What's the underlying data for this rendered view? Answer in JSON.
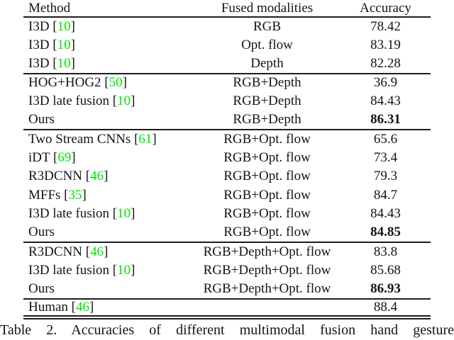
{
  "table": {
    "headers": {
      "method": "Method",
      "modalities": "Fused modalities",
      "accuracy": "Accuracy"
    },
    "rows": [
      {
        "method": "I3D [",
        "cite": "10",
        "close": "]",
        "modality": "RGB",
        "accuracy": "78.42",
        "bold": false
      },
      {
        "method": "I3D [",
        "cite": "10",
        "close": "]",
        "modality": "Opt. flow",
        "accuracy": "83.19",
        "bold": false
      },
      {
        "method": "I3D [",
        "cite": "10",
        "close": "]",
        "modality": "Depth",
        "accuracy": "82.28",
        "bold": false
      },
      {
        "method": "HOG+HOG2 [",
        "cite": "50",
        "close": "]",
        "modality": "RGB+Depth",
        "accuracy": "36.9",
        "bold": false
      },
      {
        "method": "I3D late fusion [",
        "cite": "10",
        "close": "]",
        "modality": "RGB+Depth",
        "accuracy": "84.43",
        "bold": false
      },
      {
        "method": "Ours",
        "cite": "",
        "close": "",
        "modality": "RGB+Depth",
        "accuracy": "86.31",
        "bold": true
      },
      {
        "method": "Two Stream CNNs [",
        "cite": "61",
        "close": "]",
        "modality": "RGB+Opt. flow",
        "accuracy": "65.6",
        "bold": false
      },
      {
        "method": "iDT [",
        "cite": "69",
        "close": "]",
        "modality": "RGB+Opt. flow",
        "accuracy": "73.4",
        "bold": false
      },
      {
        "method": "R3DCNN [",
        "cite": "46",
        "close": "]",
        "modality": "RGB+Opt. flow",
        "accuracy": "79.3",
        "bold": false
      },
      {
        "method": "MFFs [",
        "cite": "35",
        "close": "]",
        "modality": "RGB+Opt. flow",
        "accuracy": "84.7",
        "bold": false
      },
      {
        "method": "I3D late fusion [",
        "cite": "10",
        "close": "]",
        "modality": "RGB+Opt. flow",
        "accuracy": "84.43",
        "bold": false
      },
      {
        "method": "Ours",
        "cite": "",
        "close": "",
        "modality": "RGB+Opt. flow",
        "accuracy": "84.85",
        "bold": true
      },
      {
        "method": "R3DCNN [",
        "cite": "46",
        "close": "]",
        "modality": "RGB+Depth+Opt. flow",
        "accuracy": "83.8",
        "bold": false
      },
      {
        "method": "I3D late fusion [",
        "cite": "10",
        "close": "]",
        "modality": "RGB+Depth+Opt. flow",
        "accuracy": "85.68",
        "bold": false
      },
      {
        "method": "Ours",
        "cite": "",
        "close": "",
        "modality": "RGB+Depth+Opt. flow",
        "accuracy": "86.93",
        "bold": true
      },
      {
        "method": "Human [",
        "cite": "46",
        "close": "]",
        "modality": "",
        "accuracy": "88.4",
        "bold": false
      }
    ],
    "caption": "Table 2. Accuracies of different multimodal fusion hand gesture",
    "colors": {
      "citation_green": "#00e400",
      "text": "#141414",
      "rule": "#1d1d1d",
      "background": "#ffffff"
    }
  }
}
